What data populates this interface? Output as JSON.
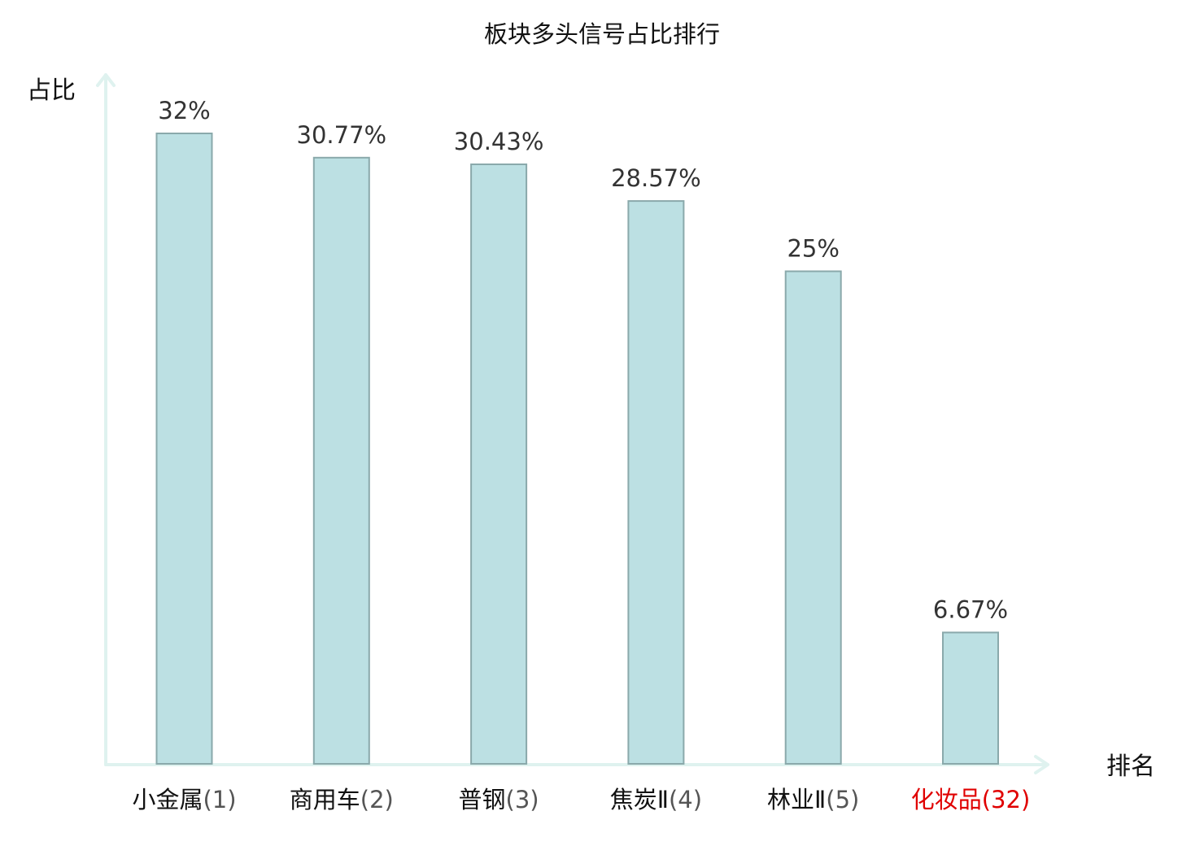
{
  "chart_data": {
    "type": "bar",
    "title": "板块多头信号占比排行",
    "xlabel": "排名",
    "ylabel": "占比",
    "categories": [
      {
        "name": "小金属",
        "rank": "(1)",
        "highlight": false
      },
      {
        "name": "商用车",
        "rank": "(2)",
        "highlight": false
      },
      {
        "name": "普钢",
        "rank": "(3)",
        "highlight": false
      },
      {
        "name": "焦炭Ⅱ",
        "rank": "(4)",
        "highlight": false
      },
      {
        "name": "林业Ⅱ",
        "rank": "(5)",
        "highlight": false
      },
      {
        "name": "化妆品",
        "rank": "(32)",
        "highlight": true
      }
    ],
    "values": [
      32,
      30.77,
      30.43,
      28.57,
      25,
      6.67
    ],
    "value_labels": [
      "32%",
      "30.77%",
      "30.43%",
      "28.57%",
      "25%",
      "6.67%"
    ],
    "ylim": [
      0,
      32
    ],
    "grid": false,
    "colors": {
      "bar_fill": "#bce0e3",
      "bar_stroke": "#8aa9ab",
      "axis": "#dff2ef",
      "label_text": "#111111",
      "rank_text": "#555555",
      "highlight_text": "#e00000"
    }
  }
}
